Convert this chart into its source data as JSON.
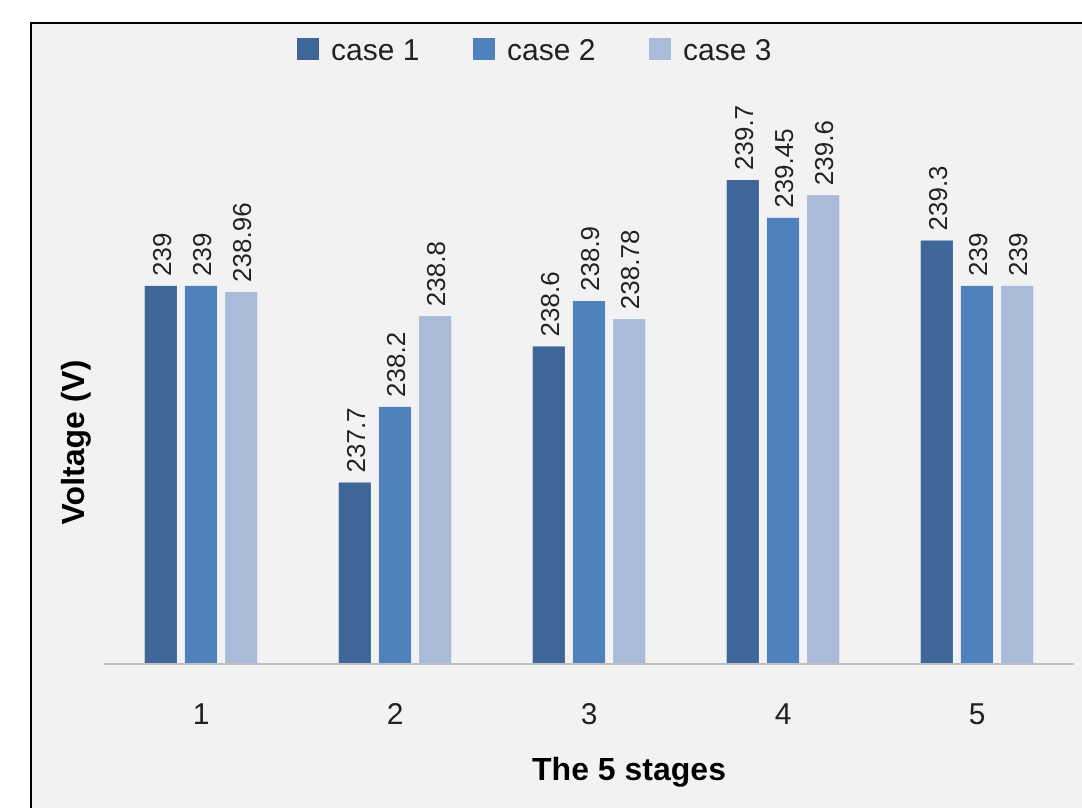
{
  "chart_data": {
    "type": "bar",
    "xlabel": "The 5 stages",
    "ylabel": "Voltage (V)",
    "categories": [
      "1",
      "2",
      "3",
      "4",
      "5"
    ],
    "series": [
      {
        "name": "case 1",
        "color": "#3e6699",
        "values": [
          239,
          237.7,
          238.6,
          239.7,
          239.3
        ]
      },
      {
        "name": "case 2",
        "color": "#4f81bd",
        "values": [
          239,
          238.2,
          238.9,
          239.45,
          239
        ]
      },
      {
        "name": "case 3",
        "color": "#aabad9",
        "values": [
          238.96,
          238.8,
          238.78,
          239.6,
          239
        ]
      }
    ],
    "ylim": [
      236.5,
      239.7
    ],
    "tick_labels": "x",
    "data_labels": true,
    "legend": "top",
    "grid": false
  }
}
